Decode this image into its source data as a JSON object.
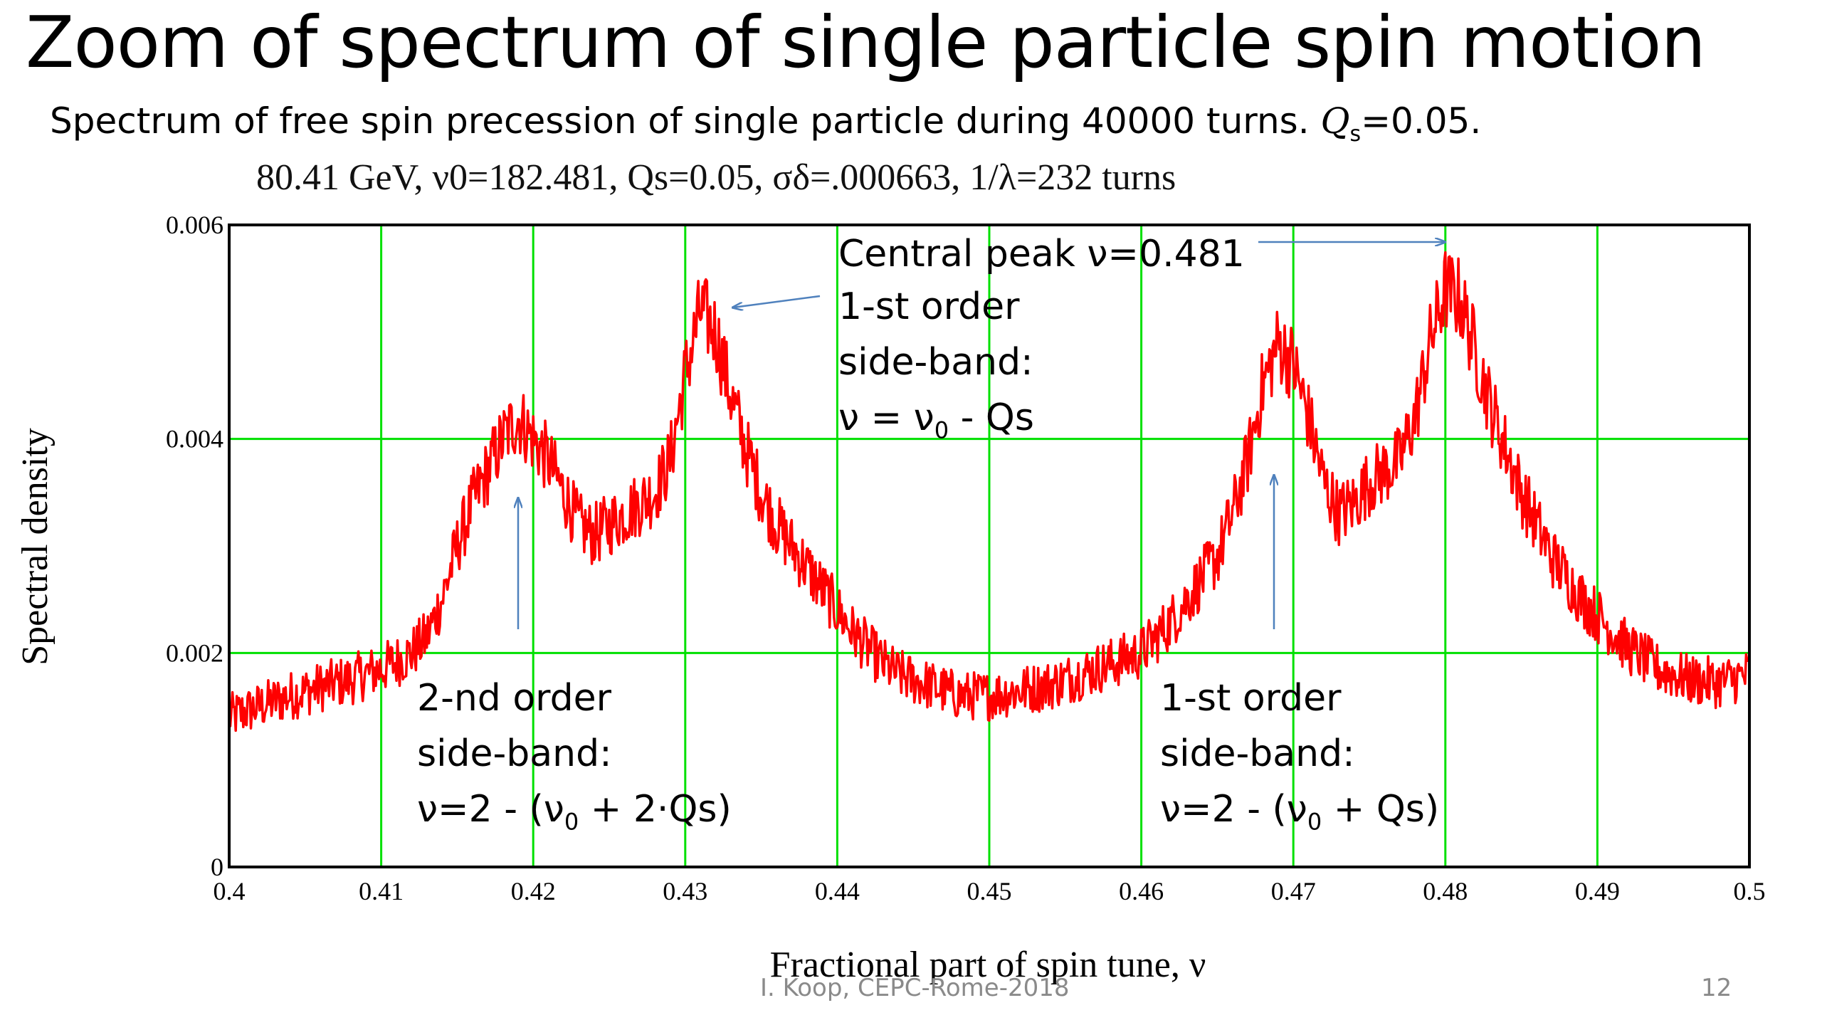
{
  "slide": {
    "title": "Zoom of spectrum of single particle spin motion",
    "subtitle_text": "Spectrum of free spin precession of single particle during 40000 turns. ",
    "subtitle_q": "Q",
    "subtitle_q_sub": "s",
    "subtitle_q_val": "=0.05.",
    "footer_author": "I. Koop, CEPC-Rome-2018",
    "page_number": "12"
  },
  "annotations": {
    "central_peak": "Central peak ν=0.481",
    "first_order_left_l1": "1-st order",
    "first_order_left_l2": "side-band:",
    "first_order_left_l3_pre": "ν = ν",
    "first_order_left_l3_sub": "0",
    "first_order_left_l3_post": " - Qs",
    "second_order_l1": "2-nd order",
    "second_order_l2": "side-band:",
    "second_order_l3_pre": "ν=2 - (ν",
    "second_order_l3_sub": "0",
    "second_order_l3_post": " + 2·Qs)",
    "first_order_right_l1": "1-st order",
    "first_order_right_l2": "side-band:",
    "first_order_right_l3_pre": "ν=2 - (ν",
    "first_order_right_l3_sub": "0",
    "first_order_right_l3_post": " + Qs)"
  },
  "colors": {
    "series": "#ff0000",
    "grid": "#00e000",
    "arrow": "#4f81bd",
    "axis": "#000000"
  },
  "chart_data": {
    "type": "line",
    "title": "80.41 GeV, ν0=182.481, Qs=0.05, σδ=.000663, 1/λ=232 turns",
    "xlabel": "Fractional part of spin tune, ν",
    "ylabel": "Spectral density",
    "xlim": [
      0.4,
      0.5
    ],
    "ylim": [
      0,
      0.006
    ],
    "grid": true,
    "x_ticks": [
      "0.4",
      "0.41",
      "0.42",
      "0.43",
      "0.44",
      "0.45",
      "0.46",
      "0.47",
      "0.48",
      "0.49",
      "0.5"
    ],
    "y_ticks": [
      "0",
      "0.002",
      "0.004",
      "0.006"
    ],
    "series": [
      {
        "x": [
          0.4,
          0.402,
          0.404,
          0.406,
          0.408,
          0.41,
          0.411,
          0.412,
          0.413,
          0.414,
          0.415,
          0.416,
          0.417,
          0.418,
          0.419,
          0.42,
          0.421,
          0.422,
          0.423,
          0.424,
          0.425,
          0.426,
          0.427,
          0.428,
          0.429,
          0.43,
          0.431,
          0.432,
          0.433,
          0.434,
          0.435,
          0.436,
          0.437,
          0.438,
          0.439,
          0.44,
          0.441,
          0.442,
          0.443,
          0.444,
          0.446,
          0.448,
          0.45,
          0.452,
          0.454,
          0.456,
          0.458,
          0.46,
          0.461,
          0.462,
          0.463,
          0.464,
          0.465,
          0.466,
          0.467,
          0.468,
          0.469,
          0.47,
          0.471,
          0.472,
          0.473,
          0.474,
          0.475,
          0.476,
          0.477,
          0.478,
          0.479,
          0.48,
          0.481,
          0.482,
          0.483,
          0.484,
          0.485,
          0.486,
          0.487,
          0.488,
          0.489,
          0.49,
          0.491,
          0.492,
          0.494,
          0.496,
          0.498,
          0.5
        ],
        "y": [
          0.0014,
          0.0015,
          0.0016,
          0.00168,
          0.00175,
          0.00185,
          0.00192,
          0.002,
          0.00215,
          0.0025,
          0.003,
          0.0034,
          0.0037,
          0.004,
          0.0042,
          0.004,
          0.0038,
          0.0035,
          0.0032,
          0.0031,
          0.0032,
          0.0033,
          0.0034,
          0.0035,
          0.0038,
          0.0046,
          0.0052,
          0.005,
          0.0044,
          0.0039,
          0.0035,
          0.0032,
          0.003,
          0.0028,
          0.0026,
          0.0024,
          0.0022,
          0.00205,
          0.0019,
          0.0018,
          0.0017,
          0.0016,
          0.0016,
          0.00165,
          0.0017,
          0.0018,
          0.0019,
          0.002,
          0.00215,
          0.0023,
          0.0025,
          0.0027,
          0.0029,
          0.0033,
          0.0038,
          0.0045,
          0.0049,
          0.0047,
          0.0042,
          0.0036,
          0.0033,
          0.0034,
          0.0036,
          0.0037,
          0.0038,
          0.0042,
          0.0049,
          0.0054,
          0.0053,
          0.0048,
          0.0043,
          0.0039,
          0.0035,
          0.0032,
          0.0029,
          0.0027,
          0.0025,
          0.00235,
          0.0022,
          0.00205,
          0.00185,
          0.00175,
          0.00172,
          0.0018
        ]
      }
    ]
  }
}
